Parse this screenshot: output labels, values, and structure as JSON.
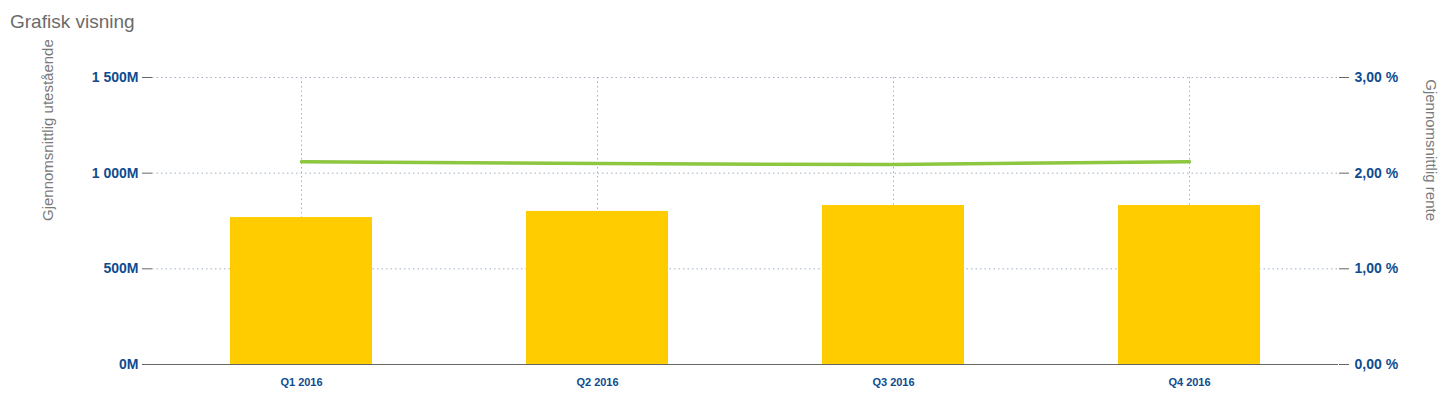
{
  "chart_data": {
    "type": "bar",
    "title": "Grafisk visning",
    "y_label": "Gjennomsnittlig utestående",
    "y2_label": "Gjennomsnittlig rente",
    "categories": [
      "Q1 2016",
      "Q2 2016",
      "Q3 2016",
      "Q4 2016"
    ],
    "series": [
      {
        "type": "bar",
        "color": "#ffcc00",
        "values": [
          768,
          800,
          831,
          831
        ]
      },
      {
        "type": "line",
        "axis": "y2",
        "color": "#8dc63f",
        "values": [
          2.12,
          2.1,
          2.09,
          2.12
        ]
      }
    ],
    "ylim": [
      0,
      1500
    ],
    "yticks": [
      {
        "value": 0,
        "label": "0M"
      },
      {
        "value": 500,
        "label": "500M"
      },
      {
        "value": 1000,
        "label": "1 000M"
      },
      {
        "value": 1500,
        "label": "1 500M"
      }
    ],
    "y2lim": [
      0,
      3
    ],
    "y2ticks": [
      {
        "value": 0,
        "label": "0,00 %"
      },
      {
        "value": 1,
        "label": "1,00 %"
      },
      {
        "value": 2,
        "label": "2,00 %"
      },
      {
        "value": 3,
        "label": "3,00 %"
      }
    ],
    "grid": true
  }
}
